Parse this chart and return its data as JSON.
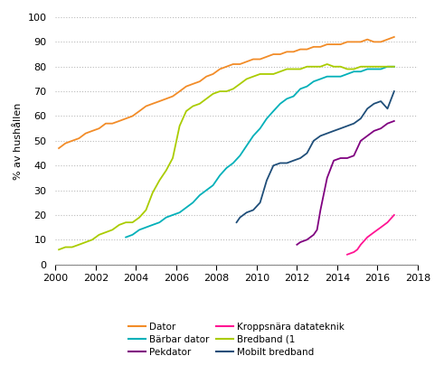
{
  "title": "",
  "ylabel": "% av hushållen",
  "xlim": [
    2000,
    2018
  ],
  "ylim": [
    0,
    100
  ],
  "xticks": [
    2000,
    2002,
    2004,
    2006,
    2008,
    2010,
    2012,
    2014,
    2016,
    2018
  ],
  "yticks": [
    0,
    10,
    20,
    30,
    40,
    50,
    60,
    70,
    80,
    90,
    100
  ],
  "series": {
    "Dator": {
      "color": "#F28C28",
      "x": [
        2000.17,
        2000.5,
        2000.83,
        2001.17,
        2001.5,
        2001.83,
        2002.17,
        2002.5,
        2002.83,
        2003.17,
        2003.5,
        2003.83,
        2004.17,
        2004.5,
        2004.83,
        2005.17,
        2005.5,
        2005.83,
        2006.17,
        2006.5,
        2006.83,
        2007.17,
        2007.5,
        2007.83,
        2008.17,
        2008.5,
        2008.83,
        2009.17,
        2009.5,
        2009.83,
        2010.17,
        2010.5,
        2010.83,
        2011.17,
        2011.5,
        2011.83,
        2012.17,
        2012.5,
        2012.83,
        2013.17,
        2013.5,
        2013.83,
        2014.17,
        2014.5,
        2014.83,
        2015.17,
        2015.5,
        2015.83,
        2016.17,
        2016.5,
        2016.83
      ],
      "y": [
        47,
        49,
        50,
        51,
        53,
        54,
        55,
        57,
        57,
        58,
        59,
        60,
        62,
        64,
        65,
        66,
        67,
        68,
        70,
        72,
        73,
        74,
        76,
        77,
        79,
        80,
        81,
        81,
        82,
        83,
        83,
        84,
        85,
        85,
        86,
        86,
        87,
        87,
        88,
        88,
        89,
        89,
        89,
        90,
        90,
        90,
        91,
        90,
        90,
        91,
        92
      ]
    },
    "Bärbar dator": {
      "color": "#00B0B9",
      "x": [
        2003.5,
        2003.83,
        2004.17,
        2004.5,
        2004.83,
        2005.17,
        2005.5,
        2005.83,
        2006.17,
        2006.5,
        2006.83,
        2007.17,
        2007.5,
        2007.83,
        2008.17,
        2008.5,
        2008.83,
        2009.17,
        2009.5,
        2009.83,
        2010.17,
        2010.5,
        2010.83,
        2011.17,
        2011.5,
        2011.83,
        2012.17,
        2012.5,
        2012.83,
        2013.17,
        2013.5,
        2013.83,
        2014.17,
        2014.5,
        2014.83,
        2015.17,
        2015.5,
        2015.83,
        2016.17,
        2016.5,
        2016.83
      ],
      "y": [
        11,
        12,
        14,
        15,
        16,
        17,
        19,
        20,
        21,
        23,
        25,
        28,
        30,
        32,
        36,
        39,
        41,
        44,
        48,
        52,
        55,
        59,
        62,
        65,
        67,
        68,
        71,
        72,
        74,
        75,
        76,
        76,
        76,
        77,
        78,
        78,
        79,
        79,
        79,
        80,
        80
      ]
    },
    "Pekdator": {
      "color": "#800080",
      "x": [
        2012.0,
        2012.17,
        2012.5,
        2012.83,
        2013.0,
        2013.17,
        2013.5,
        2013.83,
        2014.17,
        2014.5,
        2014.83,
        2015.17,
        2015.5,
        2015.83,
        2016.17,
        2016.5,
        2016.83
      ],
      "y": [
        8,
        9,
        10,
        12,
        14,
        22,
        35,
        42,
        43,
        43,
        44,
        50,
        52,
        54,
        55,
        57,
        58
      ]
    },
    "Kroppsnära datateknik": {
      "color": "#FF1493",
      "x": [
        2014.5,
        2014.83,
        2015.0,
        2015.17,
        2015.5,
        2015.83,
        2016.17,
        2016.5,
        2016.83
      ],
      "y": [
        4,
        5,
        6,
        8,
        11,
        13,
        15,
        17,
        20
      ]
    },
    "Bredband (1": {
      "color": "#AACC00",
      "x": [
        2000.17,
        2000.5,
        2000.83,
        2001.17,
        2001.5,
        2001.83,
        2002.17,
        2002.5,
        2002.83,
        2003.17,
        2003.5,
        2003.83,
        2004.17,
        2004.5,
        2004.83,
        2005.17,
        2005.5,
        2005.83,
        2006.17,
        2006.5,
        2006.83,
        2007.17,
        2007.5,
        2007.83,
        2008.17,
        2008.5,
        2008.83,
        2009.17,
        2009.5,
        2009.83,
        2010.17,
        2010.5,
        2010.83,
        2011.17,
        2011.5,
        2011.83,
        2012.17,
        2012.5,
        2012.83,
        2013.17,
        2013.5,
        2013.83,
        2014.17,
        2014.5,
        2014.83,
        2015.17,
        2015.5,
        2015.83,
        2016.17,
        2016.5,
        2016.83
      ],
      "y": [
        6,
        7,
        7,
        8,
        9,
        10,
        12,
        13,
        14,
        16,
        17,
        17,
        19,
        22,
        29,
        34,
        38,
        43,
        56,
        62,
        64,
        65,
        67,
        69,
        70,
        70,
        71,
        73,
        75,
        76,
        77,
        77,
        77,
        78,
        79,
        79,
        79,
        80,
        80,
        80,
        81,
        80,
        80,
        79,
        79,
        80,
        80,
        80,
        80,
        80,
        80
      ]
    },
    "Mobilt bredband": {
      "color": "#1F4E79",
      "x": [
        2009.0,
        2009.17,
        2009.5,
        2009.83,
        2010.17,
        2010.5,
        2010.83,
        2011.17,
        2011.5,
        2011.83,
        2012.17,
        2012.5,
        2012.83,
        2013.17,
        2013.5,
        2013.83,
        2014.17,
        2014.5,
        2014.83,
        2015.17,
        2015.5,
        2015.83,
        2016.17,
        2016.5,
        2016.83
      ],
      "y": [
        17,
        19,
        21,
        22,
        25,
        34,
        40,
        41,
        41,
        42,
        43,
        45,
        50,
        52,
        53,
        54,
        55,
        56,
        57,
        59,
        63,
        65,
        66,
        63,
        70
      ]
    }
  },
  "legend_cols": [
    [
      "Dator",
      "Pekdator",
      "Bredband (1"
    ],
    [
      "Bärbar dator",
      "Kroppsnära datateknik",
      "Mobilt bredband"
    ]
  ],
  "background_color": "#ffffff",
  "grid_color": "#bbbbbb"
}
